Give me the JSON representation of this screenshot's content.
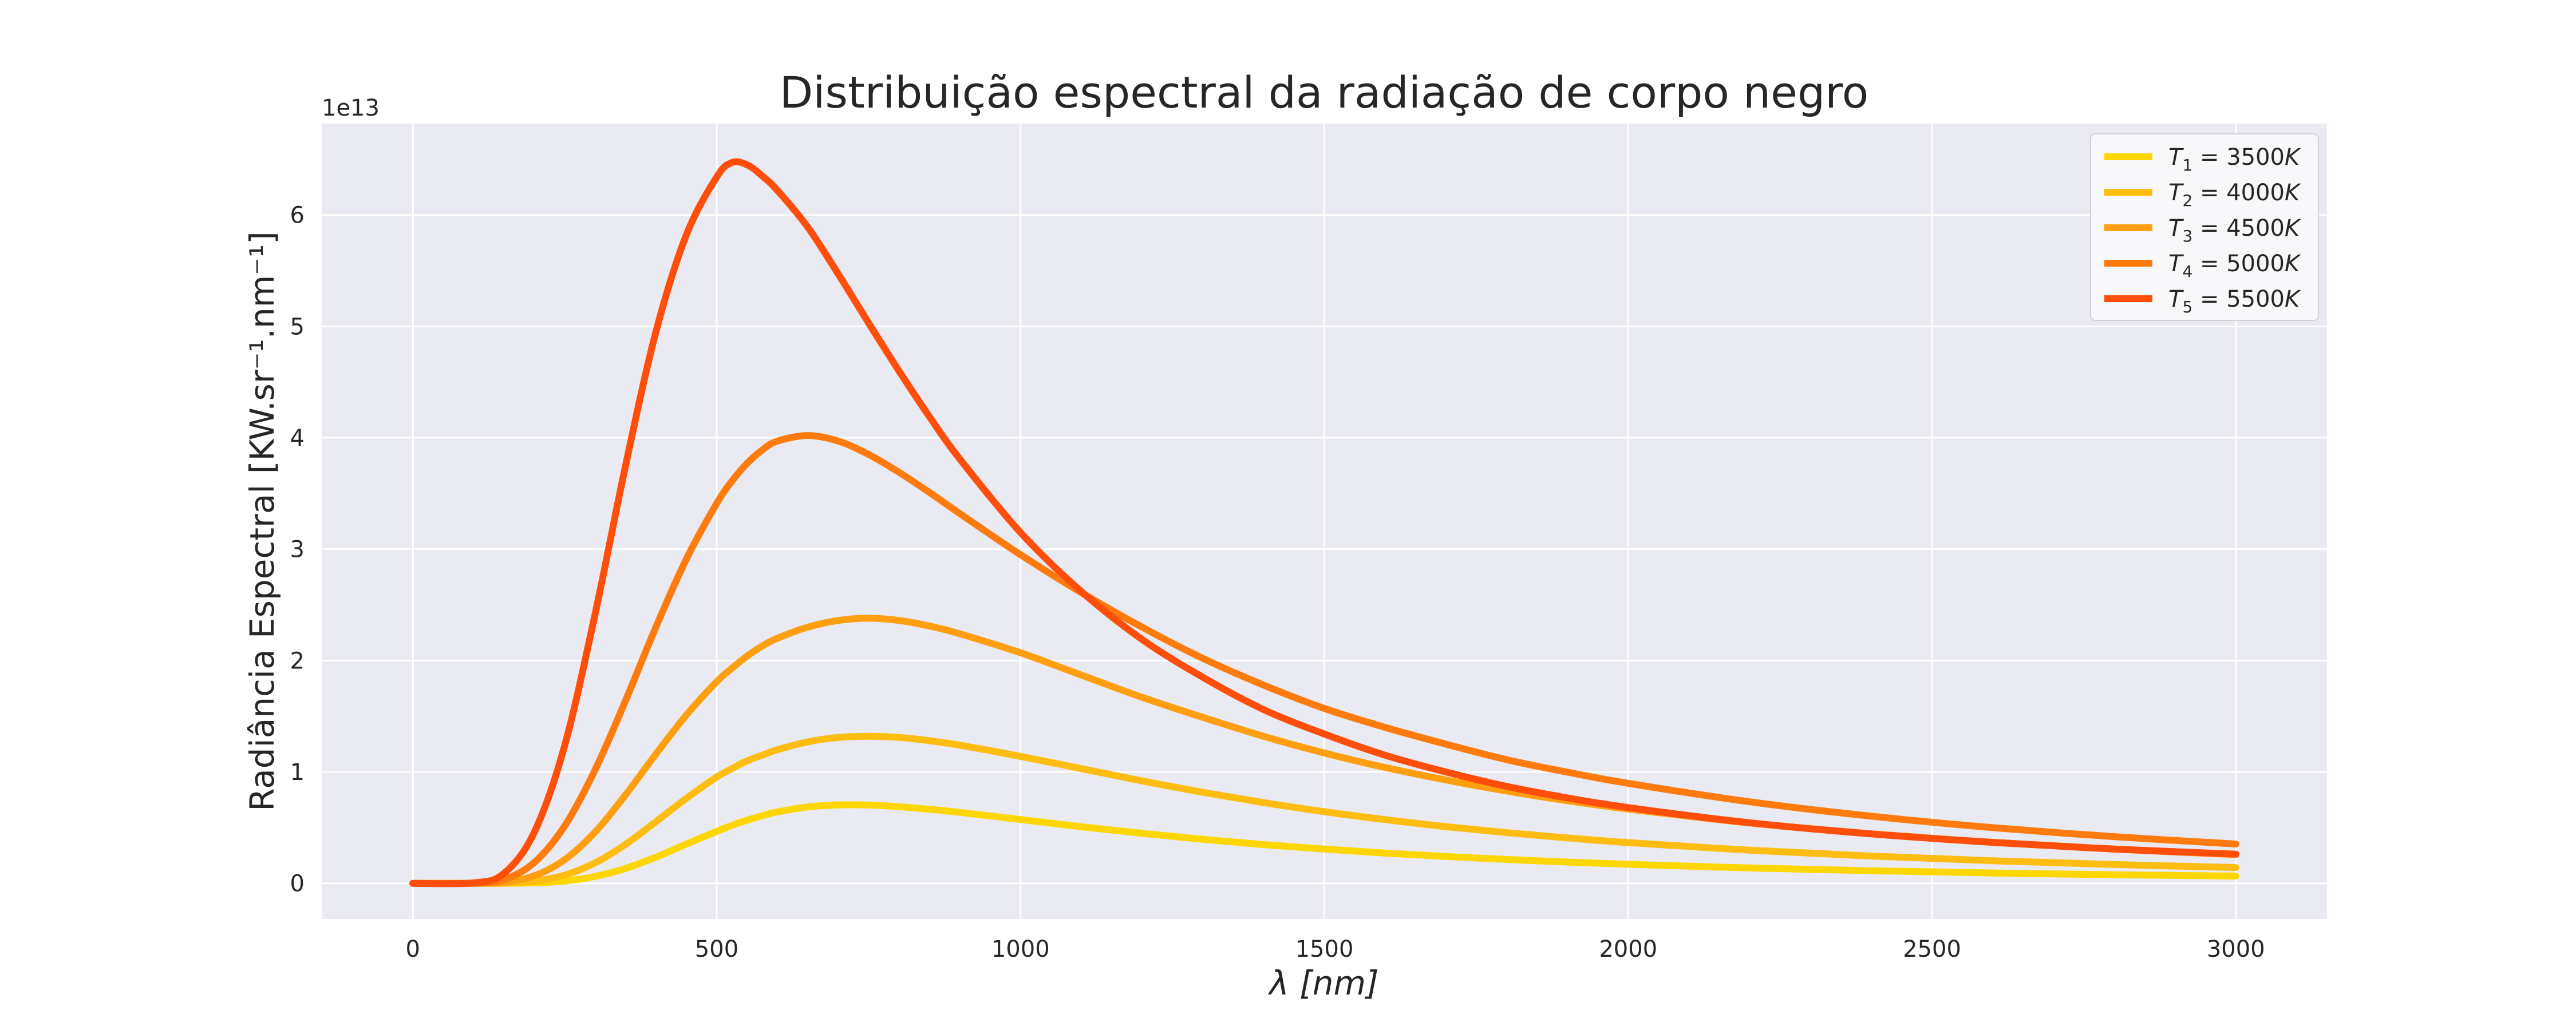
{
  "chart_data": {
    "type": "line",
    "title": "Distribuição espectral da radiação de corpo negro",
    "xlabel": "λ [nm]",
    "ylabel": "Radiância Espectral [KW.sr⁻¹.nm⁻¹]",
    "y_offset_label": "1e13",
    "xlim": [
      -150,
      3150
    ],
    "ylim": [
      -0.32,
      6.82
    ],
    "y_unit_multiplier": "1e13",
    "x_ticks": [
      0,
      500,
      1000,
      1500,
      2000,
      2500,
      3000
    ],
    "x_tick_labels": [
      "0",
      "500",
      "1000",
      "1500",
      "2000",
      "2500",
      "3000"
    ],
    "y_ticks": [
      0,
      1,
      2,
      3,
      4,
      5,
      6
    ],
    "y_tick_labels": [
      "0",
      "1",
      "2",
      "3",
      "4",
      "5",
      "6"
    ],
    "grid": true,
    "legend_position": "top-right",
    "background": "#eaeaf2",
    "x": [
      0,
      100,
      150,
      200,
      250,
      300,
      350,
      400,
      450,
      500,
      525,
      550,
      575,
      600,
      650,
      700,
      750,
      800,
      850,
      900,
      1000,
      1100,
      1200,
      1300,
      1400,
      1500,
      1600,
      1700,
      1800,
      1900,
      2000,
      2200,
      2400,
      2600,
      2800,
      3000
    ],
    "series": [
      {
        "name": "T₁ = 3500K",
        "label_T": "T",
        "label_sub": "1",
        "label_eq": " = 3500",
        "label_unit": "K",
        "color": "#ffd700",
        "values": [
          0,
          0,
          0.0004,
          0.0045,
          0.021,
          0.062,
          0.134,
          0.235,
          0.352,
          0.467,
          0.52,
          0.567,
          0.607,
          0.641,
          0.686,
          0.704,
          0.703,
          0.688,
          0.665,
          0.637,
          0.573,
          0.508,
          0.449,
          0.395,
          0.348,
          0.307,
          0.271,
          0.241,
          0.214,
          0.191,
          0.171,
          0.138,
          0.113,
          0.093,
          0.077,
          0.065
        ]
      },
      {
        "name": "T₂ = 4000K",
        "label_T": "T",
        "label_sub": "2",
        "label_eq": " = 4000",
        "label_unit": "K",
        "color": "#ffbd11",
        "values": [
          0,
          0,
          0.0025,
          0.02,
          0.074,
          0.184,
          0.35,
          0.553,
          0.763,
          0.954,
          1.03,
          1.1,
          1.15,
          1.2,
          1.27,
          1.31,
          1.32,
          1.31,
          1.28,
          1.24,
          1.14,
          1.03,
          0.919,
          0.817,
          0.725,
          0.643,
          0.572,
          0.509,
          0.455,
          0.408,
          0.366,
          0.298,
          0.245,
          0.203,
          0.169,
          0.142
        ]
      },
      {
        "name": "T₃ = 4500K",
        "label_T": "T",
        "label_sub": "3",
        "label_eq": " = 4500",
        "label_unit": "K",
        "color": "#ff9f10",
        "values": [
          0,
          0.0003,
          0.011,
          0.068,
          0.213,
          0.461,
          0.794,
          1.16,
          1.51,
          1.81,
          1.93,
          2.04,
          2.13,
          2.2,
          2.3,
          2.36,
          2.38,
          2.36,
          2.31,
          2.24,
          2.07,
          1.87,
          1.67,
          1.49,
          1.32,
          1.17,
          1.04,
          0.928,
          0.829,
          0.742,
          0.667,
          0.542,
          0.445,
          0.368,
          0.307,
          0.258
        ]
      },
      {
        "name": "T₄ = 5000K",
        "label_T": "T",
        "label_sub": "4",
        "label_eq": " = 5000",
        "label_unit": "K",
        "color": "#ff7b0d",
        "values": [
          0,
          0.0012,
          0.034,
          0.188,
          0.516,
          1.02,
          1.64,
          2.3,
          2.91,
          3.41,
          3.61,
          3.77,
          3.89,
          3.97,
          4.02,
          3.97,
          3.85,
          3.69,
          3.51,
          3.32,
          2.95,
          2.61,
          2.3,
          2.02,
          1.78,
          1.57,
          1.4,
          1.25,
          1.11,
          0.998,
          0.898,
          0.732,
          0.603,
          0.5,
          0.419,
          0.353
        ]
      },
      {
        "name": "T₅ = 5500K",
        "label_T": "T",
        "label_sub": "5",
        "label_eq": " = 5500",
        "label_unit": "K",
        "color": "#ff4d0a",
        "values": [
          0,
          0.004,
          0.09,
          0.46,
          1.24,
          2.42,
          3.75,
          4.95,
          5.82,
          6.34,
          6.47,
          6.45,
          6.35,
          6.22,
          5.89,
          5.47,
          5.03,
          4.6,
          4.19,
          3.81,
          3.15,
          2.62,
          2.19,
          1.85,
          1.56,
          1.34,
          1.15,
          1.0,
          0.87,
          0.767,
          0.68,
          0.544,
          0.444,
          0.368,
          0.308,
          0.262
        ]
      }
    ]
  }
}
